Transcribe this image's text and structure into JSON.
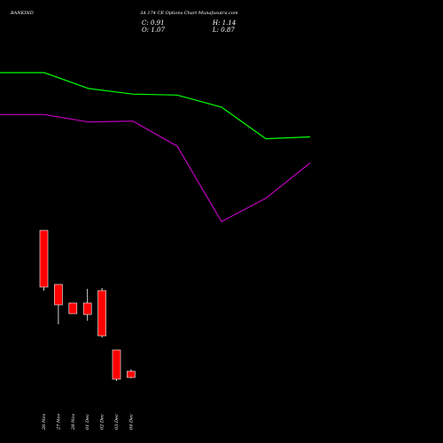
{
  "header": {
    "symbol": "BANKIND",
    "subtitle": "3A 174 CE Options  Chart Munafasutra.com",
    "close": "C: 0.91",
    "high": "H: 1.14",
    "open": "O: 1.07",
    "low": "L: 0.87"
  },
  "chart_data": {
    "type": "candlestick",
    "title": "",
    "x": [
      "26 Nov",
      "27 Nov",
      "28 Nov",
      "01 Dec",
      "02 Dec",
      "03 Dec",
      "04 Dec"
    ],
    "candles": [
      {
        "date": "26 Nov",
        "open": 2.2,
        "high": 2.2,
        "close": 1.95,
        "low": 1.94
      },
      {
        "date": "27 Nov",
        "open": 1.96,
        "high": 1.96,
        "close": 1.87,
        "low": 1.85
      },
      {
        "date": "28 Nov",
        "open": 1.94,
        "high": 1.94,
        "close": 1.9,
        "low": 1.9
      },
      {
        "date": "01 Dec",
        "open": 1.89,
        "high": 1.96,
        "close": 1.85,
        "low": 1.84
      },
      {
        "date": "02 Dec",
        "open": 1.95,
        "high": 1.95,
        "close": 1.79,
        "low": 1.79
      },
      {
        "date": "03 Dec",
        "open": 1.78,
        "high": 1.78,
        "close": 1.68,
        "low": 1.67
      },
      {
        "date": "04 Dec",
        "open": 1.07,
        "high": 1.14,
        "close": 0.91,
        "low": 0.87
      }
    ],
    "series": [
      {
        "color": "#00ff00",
        "x": [
          "26 Nov",
          "27 Nov",
          "28 Nov",
          "01 Dec",
          "02 Dec",
          "03 Dec",
          "04 Dec"
        ],
        "values": [
          4.19,
          4.02,
          3.96,
          3.95,
          3.82,
          3.48,
          3.5
        ]
      },
      {
        "color": "#c000c0",
        "x": [
          "26 Nov",
          "27 Nov",
          "28 Nov",
          "01 Dec",
          "02 Dec",
          "03 Dec",
          "04 Dec"
        ],
        "values": [
          3.74,
          3.66,
          3.67,
          3.4,
          2.59,
          2.84,
          3.22
        ]
      }
    ],
    "colors": {
      "candle": "#ff0000",
      "background": "#000000"
    },
    "grid": false,
    "legend": "none"
  }
}
